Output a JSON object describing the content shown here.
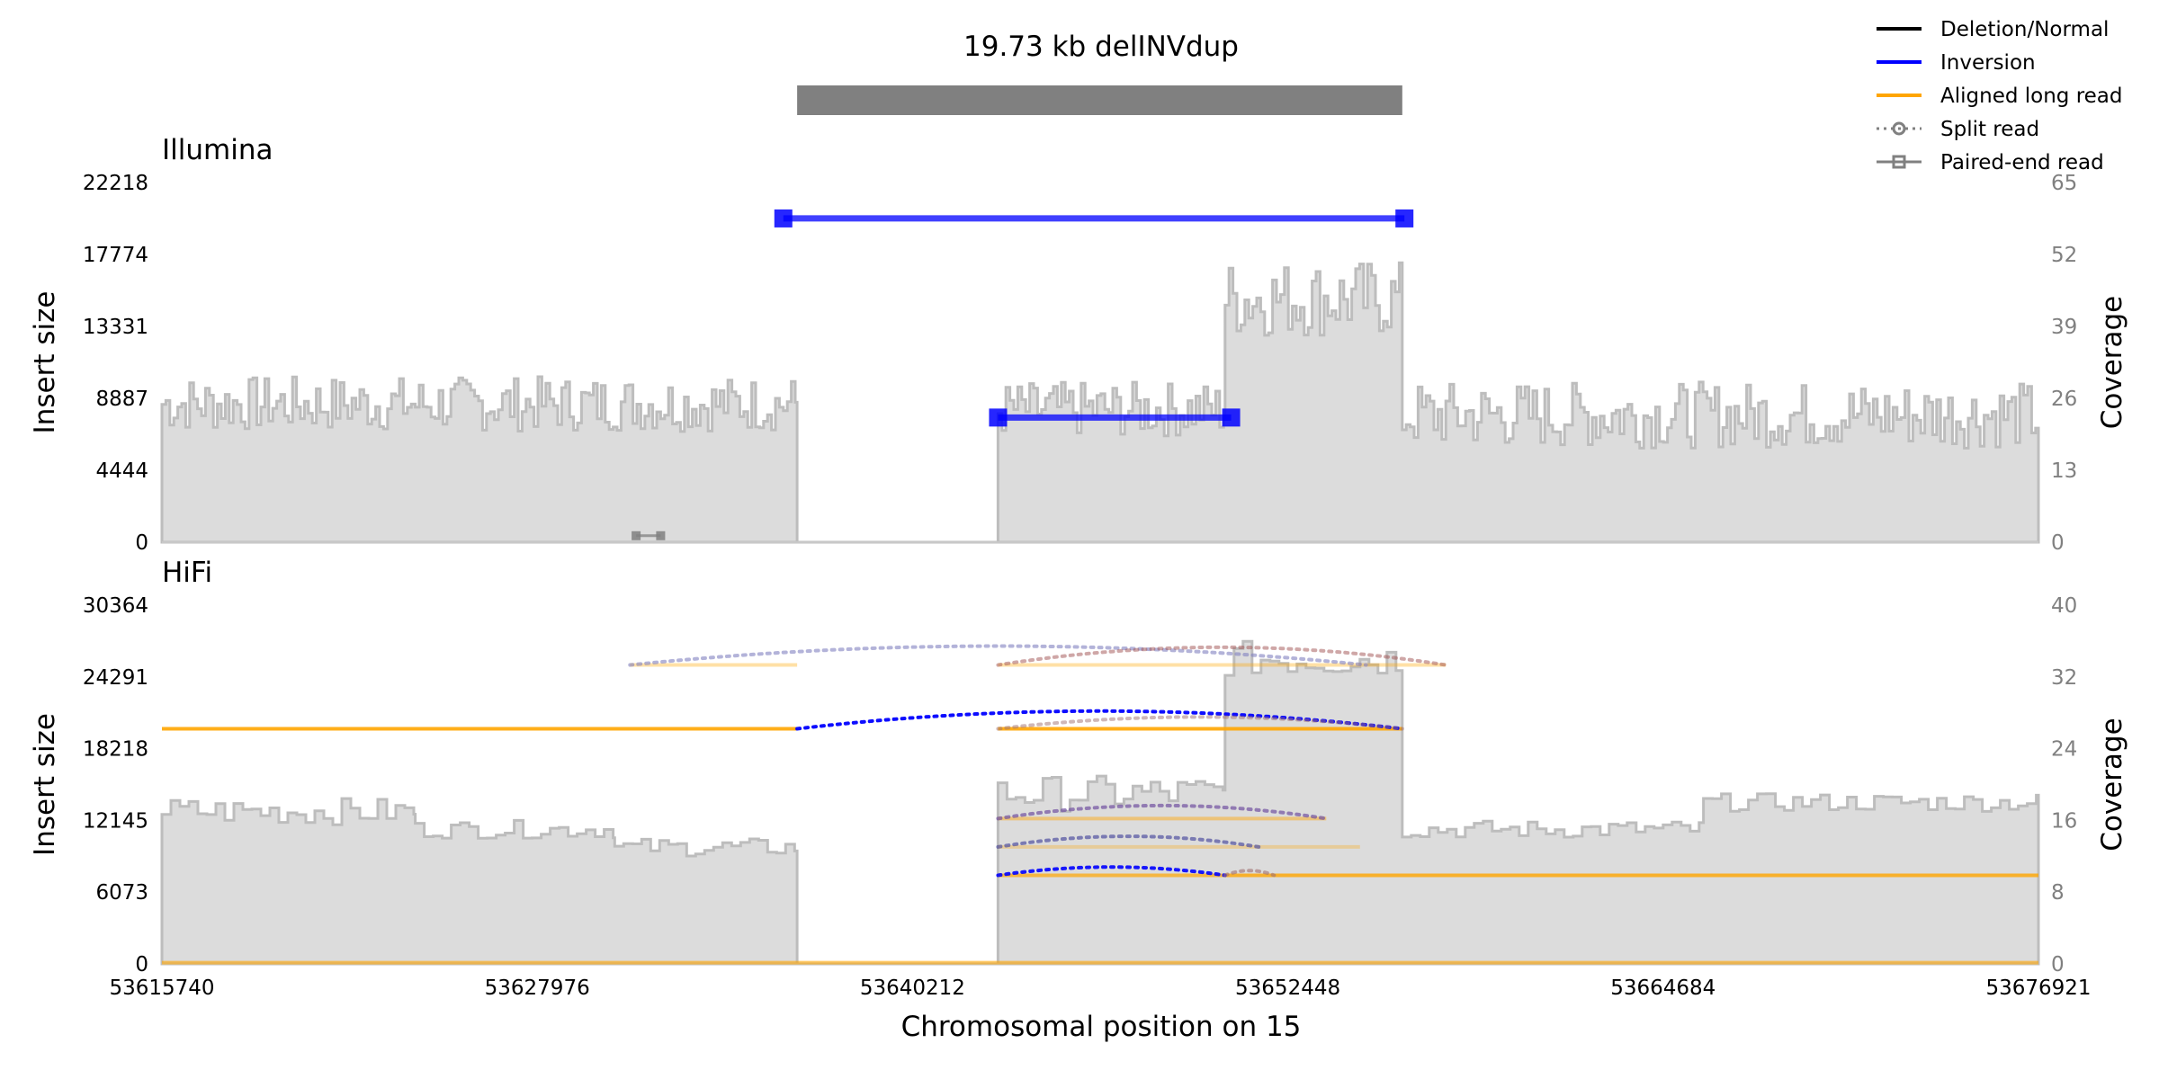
{
  "chart_data": {
    "type": "line",
    "title": "19.73 kb delINVdup",
    "xlabel": "Chromosomal position on 15",
    "xlim": [
      53615740,
      53676921
    ],
    "xticks": [
      53615740,
      53627976,
      53640212,
      53652448,
      53664684,
      53676921
    ],
    "sv_bar": {
      "start": 53636450,
      "end": 53656180
    },
    "legend": {
      "position": "top-right",
      "items": [
        {
          "label": "Deletion/Normal",
          "color": "#000000",
          "style": "solid"
        },
        {
          "label": "Inversion",
          "color": "#0000ff",
          "style": "solid"
        },
        {
          "label": "Aligned long read",
          "color": "#ffa500",
          "style": "solid"
        },
        {
          "label": "Split read",
          "color": "#808080",
          "style": "dotted-circle"
        },
        {
          "label": "Paired-end read",
          "color": "#808080",
          "style": "solid-square"
        }
      ]
    },
    "panels": [
      {
        "name": "Illumina",
        "ylabel": "Insert size",
        "ylabel_right": "Coverage",
        "ylim": [
          0,
          22218
        ],
        "yticks": [
          0,
          4444,
          8887,
          13331,
          17774,
          22218
        ],
        "coverage_ylim": [
          0,
          65
        ],
        "coverage_yticks": [
          0,
          13,
          26,
          39,
          52,
          65
        ],
        "coverage_segments": [
          {
            "x0": 53615740,
            "x1": 53636450,
            "base": 25,
            "amp": 5
          },
          {
            "x0": 53636450,
            "x1": 53643000,
            "base": 0,
            "amp": 0
          },
          {
            "x0": 53643000,
            "x1": 53650400,
            "base": 24,
            "amp": 5
          },
          {
            "x0": 53650400,
            "x1": 53656180,
            "base": 44,
            "amp": 7
          },
          {
            "x0": 53656180,
            "x1": 53676921,
            "base": 23,
            "amp": 6
          }
        ],
        "reads": [
          {
            "x0": 53636000,
            "x1": 53656250,
            "y": 20000,
            "color": "#0000ff",
            "type": "paired"
          },
          {
            "x0": 53643000,
            "x1": 53650600,
            "y": 7700,
            "color": "#0000ff",
            "type": "paired"
          },
          {
            "x0": 53631200,
            "x1": 53632000,
            "y": 400,
            "color": "#808080",
            "type": "paired"
          }
        ]
      },
      {
        "name": "HiFi",
        "ylabel": "Insert size",
        "ylabel_right": "Coverage",
        "ylim": [
          0,
          30364
        ],
        "yticks": [
          0,
          6073,
          12145,
          18218,
          24291,
          30364
        ],
        "coverage_ylim": [
          0,
          40
        ],
        "coverage_yticks": [
          0,
          8,
          16,
          24,
          32,
          40
        ],
        "coverage_segments": [
          {
            "x0": 53615740,
            "x1": 53624000,
            "base": 17,
            "amp": 1.5
          },
          {
            "x0": 53624000,
            "x1": 53630500,
            "base": 15,
            "amp": 1
          },
          {
            "x0": 53630500,
            "x1": 53636450,
            "base": 13,
            "amp": 1
          },
          {
            "x0": 53636450,
            "x1": 53643000,
            "base": 0,
            "amp": 0
          },
          {
            "x0": 53643000,
            "x1": 53650400,
            "base": 19,
            "amp": 2
          },
          {
            "x0": 53650400,
            "x1": 53656180,
            "base": 34,
            "amp": 2
          },
          {
            "x0": 53656180,
            "x1": 53666000,
            "base": 15,
            "amp": 1
          },
          {
            "x0": 53666000,
            "x1": 53676921,
            "base": 18,
            "amp": 1
          }
        ],
        "reads": [
          {
            "x0": 53615740,
            "x1": 53636450,
            "y": 19900,
            "color": "#ffa500",
            "type": "aligned",
            "opacity": 0.9
          },
          {
            "x0": 53643000,
            "x1": 53656180,
            "y": 19900,
            "color": "#ffa500",
            "type": "aligned",
            "opacity": 0.9
          },
          {
            "x0": 53631000,
            "x1": 53636450,
            "y": 25300,
            "color": "#ffa500",
            "type": "aligned",
            "opacity": 0.35
          },
          {
            "x0": 53643000,
            "x1": 53657600,
            "y": 25300,
            "color": "#ffa500",
            "type": "aligned",
            "opacity": 0.35
          },
          {
            "x0": 53643000,
            "x1": 53653700,
            "y": 12300,
            "color": "#ffa500",
            "type": "aligned",
            "opacity": 0.45
          },
          {
            "x0": 53643000,
            "x1": 53654800,
            "y": 9900,
            "color": "#ffa500",
            "type": "aligned",
            "opacity": 0.3
          },
          {
            "x0": 53643000,
            "x1": 53650400,
            "y": 7500,
            "color": "#ffa500",
            "type": "aligned",
            "opacity": 0.7
          },
          {
            "x0": 53650400,
            "x1": 53676921,
            "y": 7500,
            "color": "#ffa500",
            "type": "aligned",
            "opacity": 0.8
          },
          {
            "x0": 53615740,
            "x1": 53676921,
            "y": 100,
            "color": "#ffa500",
            "type": "aligned",
            "opacity": 0.6
          }
        ],
        "split_arcs": [
          {
            "x0": 53636450,
            "x1": 53656180,
            "y": 19900,
            "h": 1500,
            "color": "#0000ff",
            "opacity": 0.95
          },
          {
            "x0": 53631000,
            "x1": 53655000,
            "y": 25300,
            "h": 1600,
            "color": "#8080c0",
            "opacity": 0.6
          },
          {
            "x0": 53643000,
            "x1": 53657600,
            "y": 25300,
            "h": 1500,
            "color": "#a05050",
            "opacity": 0.5
          },
          {
            "x0": 53643000,
            "x1": 53656180,
            "y": 19900,
            "h": 1000,
            "color": "#a07070",
            "opacity": 0.5
          },
          {
            "x0": 53643000,
            "x1": 53653700,
            "y": 12300,
            "h": 1100,
            "color": "#7050a0",
            "opacity": 0.7
          },
          {
            "x0": 53643000,
            "x1": 53651500,
            "y": 9900,
            "h": 900,
            "color": "#5050a0",
            "opacity": 0.7
          },
          {
            "x0": 53643000,
            "x1": 53650400,
            "y": 7500,
            "h": 700,
            "color": "#0000ff",
            "opacity": 0.9
          },
          {
            "x0": 53650400,
            "x1": 53652000,
            "y": 7500,
            "h": 400,
            "color": "#a07070",
            "opacity": 0.6
          }
        ]
      }
    ]
  }
}
